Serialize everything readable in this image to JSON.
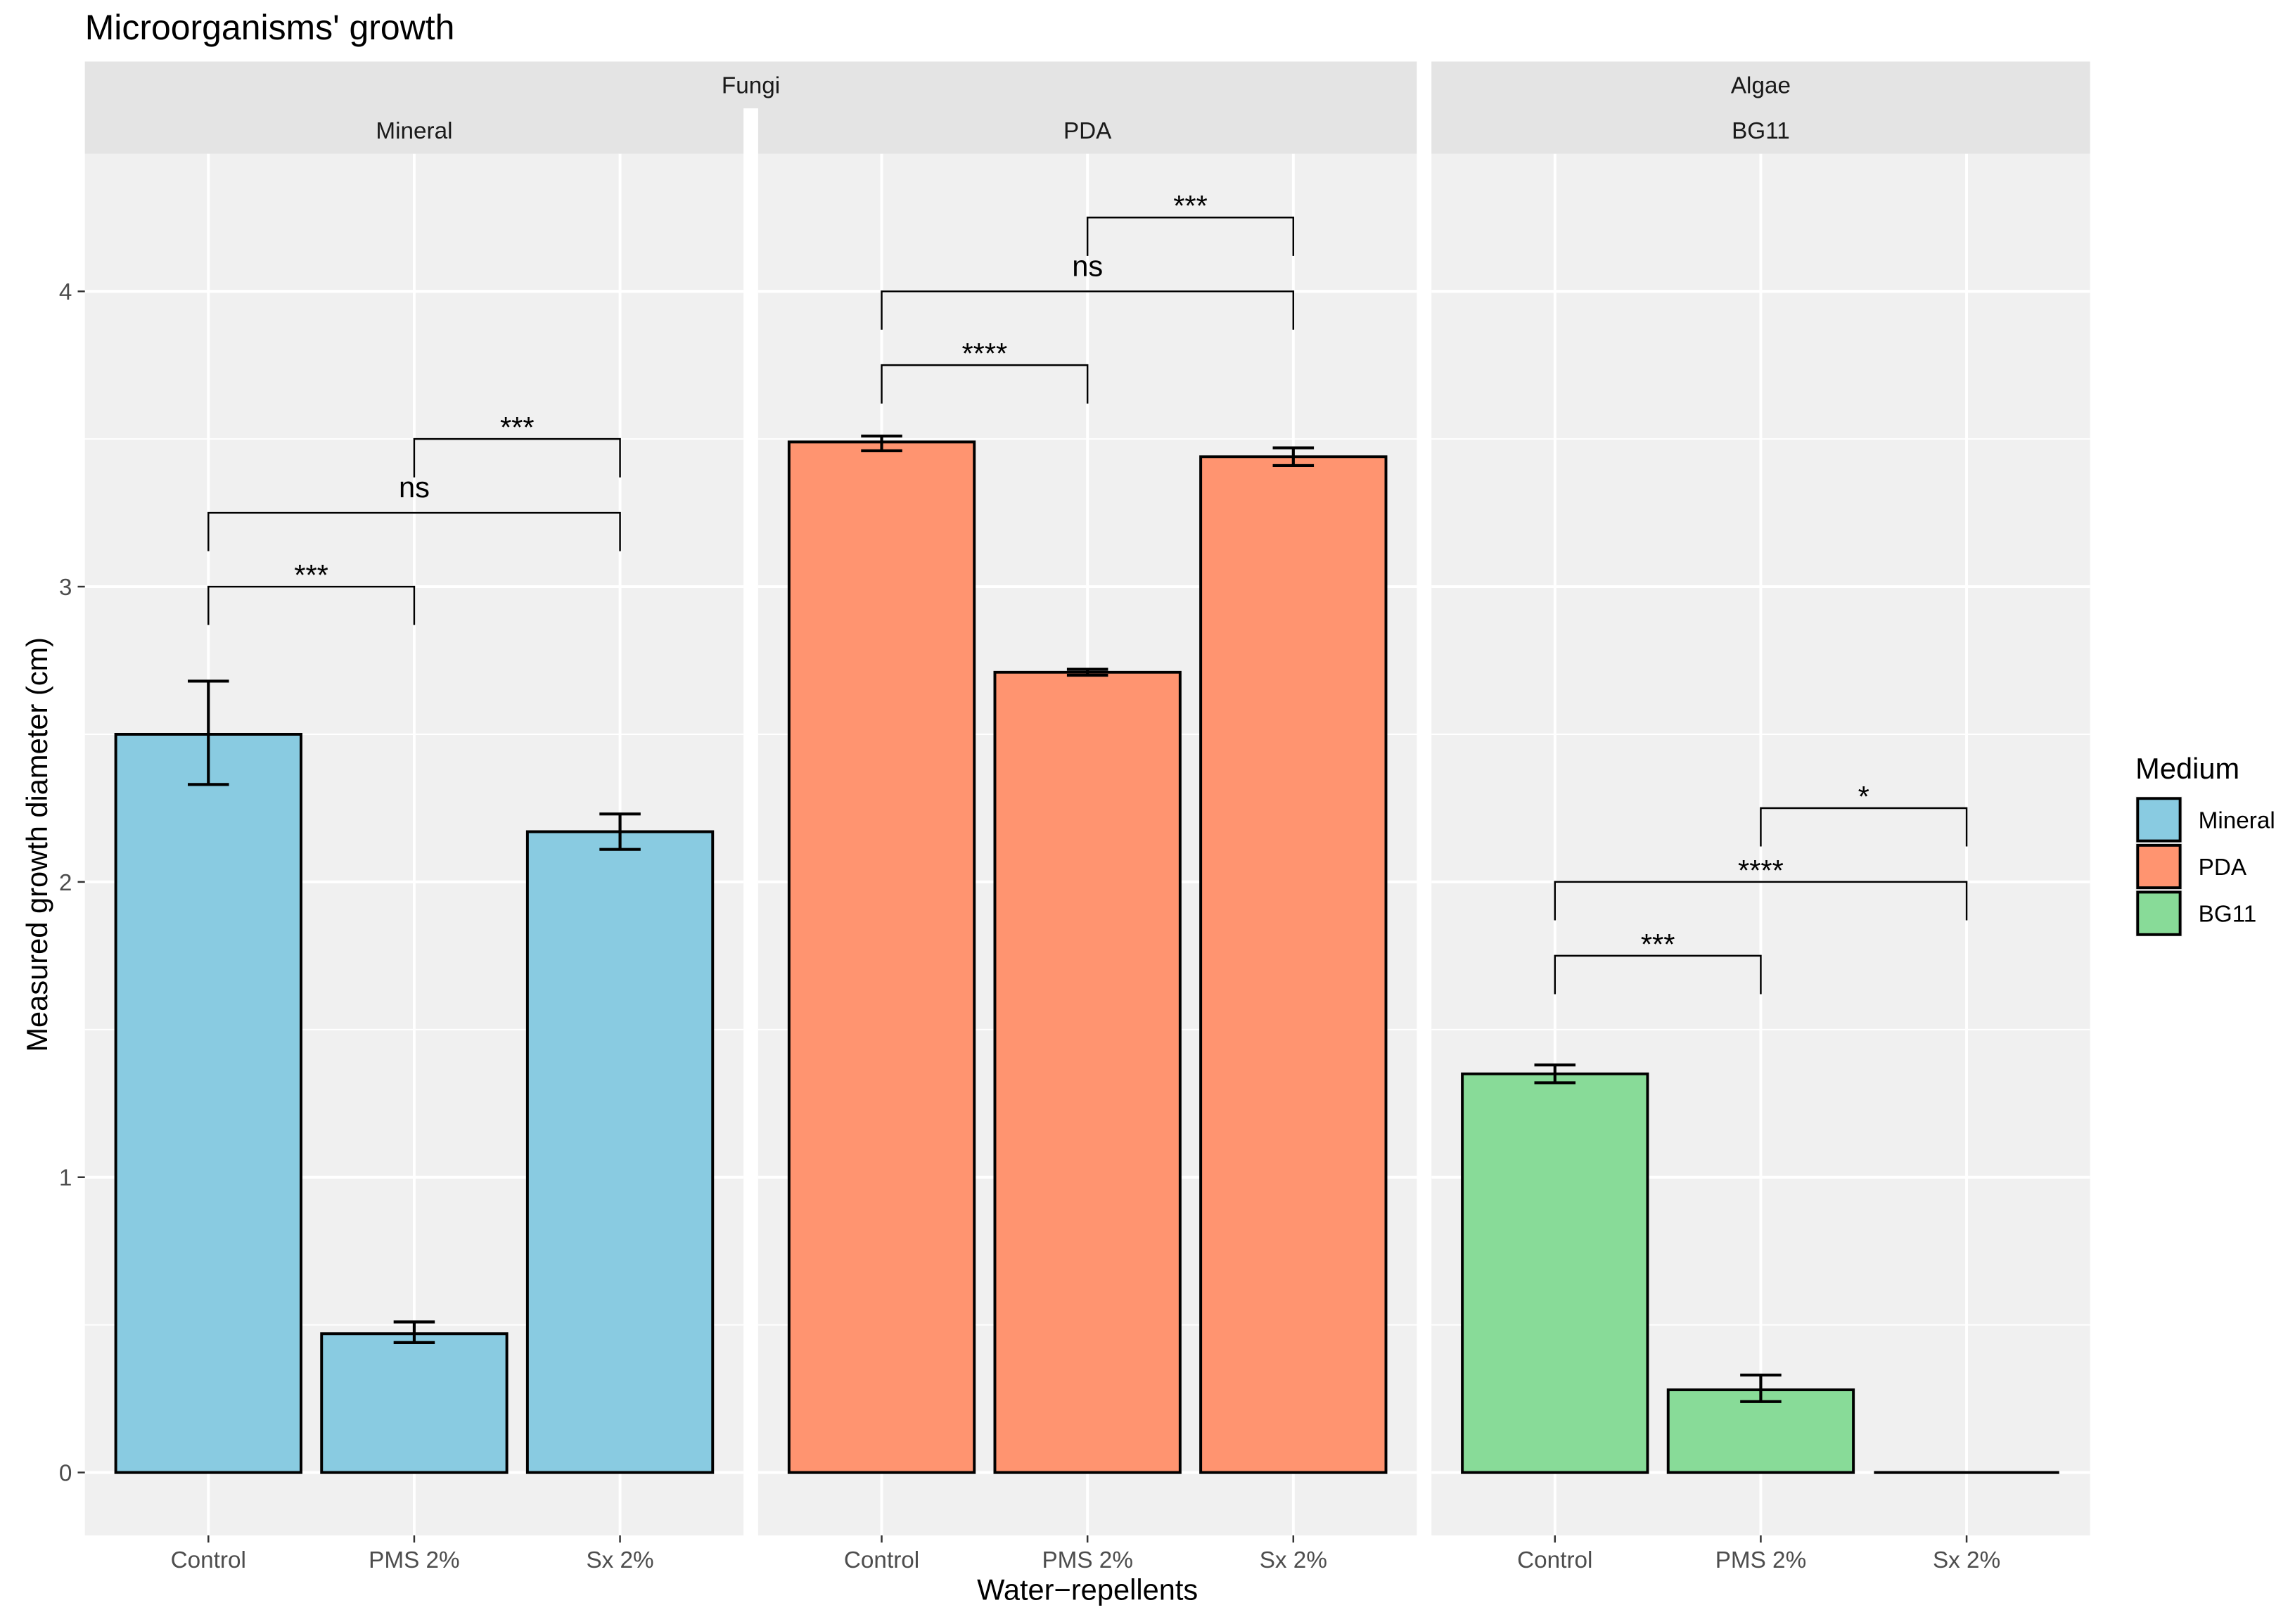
{
  "colors": {
    "Mineral": "#89CBE1",
    "PDA": "#FF9470",
    "BG11": "#88DB98",
    "panel_background": "#F0F0F0",
    "strip_background": "#E4E4E4",
    "grid": "#FFFFFF",
    "outline": "#000000",
    "legend_key_background": "#F2F2F2"
  },
  "chart_data": {
    "type": "bar",
    "title": "Microorganisms' growth",
    "xlabel": "Water−repellents",
    "ylabel": "Measured growth diameter (cm)",
    "ylim": [
      -0.213,
      4.466
    ],
    "yticks": [
      0,
      1,
      2,
      3,
      4
    ],
    "grid": true,
    "categories": [
      "Control",
      "PMS 2%",
      "Sx 2%"
    ],
    "groups": [
      {
        "label": "Fungi",
        "facets": [
          {
            "medium": "Mineral",
            "values": [
              2.5,
              0.47,
              2.17
            ],
            "error_low": [
              2.33,
              0.44,
              2.11
            ],
            "error_high": [
              2.68,
              0.51,
              2.23
            ],
            "comparisons": [
              {
                "pair": [
                  0,
                  1
                ],
                "label": "***",
                "y_position": 3.0
              },
              {
                "pair": [
                  0,
                  2
                ],
                "label": "ns",
                "y_position": 3.25
              },
              {
                "pair": [
                  1,
                  2
                ],
                "label": "***",
                "y_position": 3.5
              }
            ]
          },
          {
            "medium": "PDA",
            "values": [
              3.49,
              2.71,
              3.44
            ],
            "error_low": [
              3.46,
              2.7,
              3.41
            ],
            "error_high": [
              3.51,
              2.72,
              3.47
            ],
            "comparisons": [
              {
                "pair": [
                  0,
                  1
                ],
                "label": "****",
                "y_position": 3.75
              },
              {
                "pair": [
                  0,
                  2
                ],
                "label": "ns",
                "y_position": 4.0
              },
              {
                "pair": [
                  1,
                  2
                ],
                "label": "***",
                "y_position": 4.25
              }
            ]
          }
        ]
      },
      {
        "label": "Algae",
        "facets": [
          {
            "medium": "BG11",
            "values": [
              1.35,
              0.28,
              0.0
            ],
            "error_low": [
              1.32,
              0.24,
              null
            ],
            "error_high": [
              1.38,
              0.33,
              null
            ],
            "comparisons": [
              {
                "pair": [
                  0,
                  1
                ],
                "label": "***",
                "y_position": 1.75
              },
              {
                "pair": [
                  0,
                  2
                ],
                "label": "****",
                "y_position": 2.0
              },
              {
                "pair": [
                  1,
                  2
                ],
                "label": "*",
                "y_position": 2.25
              }
            ]
          }
        ]
      }
    ],
    "legend": {
      "title": "Medium",
      "entries": [
        "Mineral",
        "PDA",
        "BG11"
      ],
      "position": "right"
    }
  }
}
